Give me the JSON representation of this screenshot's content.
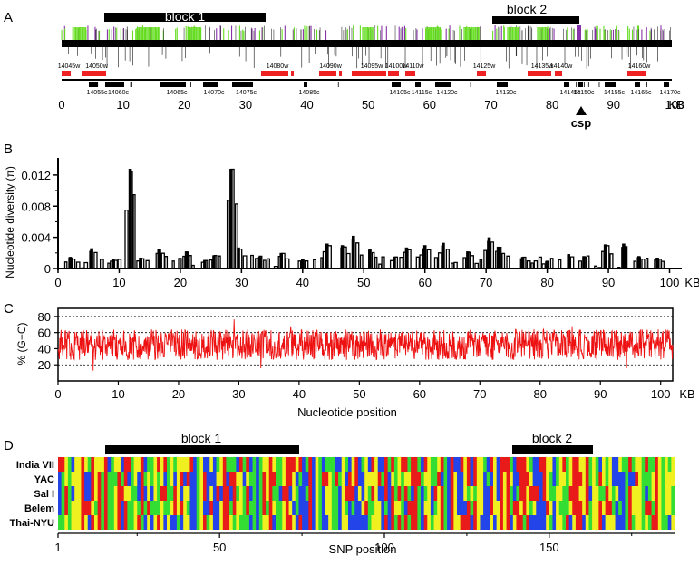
{
  "panel_a": {
    "letter": "A",
    "block_labels": [
      "block 1",
      "block 2"
    ],
    "upper_genes": [
      "14045w",
      "14050w",
      "14080w",
      "14090w",
      "14095w",
      "14100w",
      "14110w",
      "14125w",
      "14135w",
      "14140w",
      "14160w"
    ],
    "lower_genes": [
      "14055c",
      "14060c",
      "14065c",
      "14070c",
      "14075c",
      "14085c",
      "14105c",
      "14115c",
      "14120c",
      "14130c",
      "14145c",
      "14150c",
      "14155c",
      "14165c",
      "14170c"
    ],
    "axis_ticks": [
      "0",
      "10",
      "20",
      "30",
      "40",
      "50",
      "60",
      "70",
      "80",
      "90",
      "100"
    ],
    "axis_unit": "KB",
    "csp_label": "csp",
    "colors": {
      "green": "#66dd22",
      "purple": "#8833aa",
      "gene": "#ee2222"
    }
  },
  "chart_data": [
    {
      "panel": "B",
      "type": "line",
      "ylabel": "Nucleotide diversity (π)",
      "y_ticks": [
        "0",
        "0.004",
        "0.008",
        "0.012"
      ],
      "x_ticks": [
        "0",
        "10",
        "20",
        "30",
        "40",
        "50",
        "60",
        "70",
        "80",
        "90",
        "100"
      ],
      "x_unit": "KB",
      "ylim": [
        0,
        0.0135
      ],
      "xlim": [
        0,
        102
      ],
      "peaks": [
        {
          "x": 2,
          "y": 0.0015
        },
        {
          "x": 5.5,
          "y": 0.0026
        },
        {
          "x": 9,
          "y": 0.0012
        },
        {
          "x": 11.8,
          "y": 0.0128
        },
        {
          "x": 13.5,
          "y": 0.0014
        },
        {
          "x": 16.5,
          "y": 0.0025
        },
        {
          "x": 21,
          "y": 0.0022
        },
        {
          "x": 24,
          "y": 0.0011
        },
        {
          "x": 25.5,
          "y": 0.0017
        },
        {
          "x": 28.3,
          "y": 0.0128
        },
        {
          "x": 29.5,
          "y": 0.0027
        },
        {
          "x": 33,
          "y": 0.0015
        },
        {
          "x": 36.5,
          "y": 0.002
        },
        {
          "x": 40,
          "y": 0.0012
        },
        {
          "x": 44,
          "y": 0.0032
        },
        {
          "x": 46.5,
          "y": 0.003
        },
        {
          "x": 48.3,
          "y": 0.0042
        },
        {
          "x": 51,
          "y": 0.0025
        },
        {
          "x": 55,
          "y": 0.0015
        },
        {
          "x": 57,
          "y": 0.0027
        },
        {
          "x": 60,
          "y": 0.003
        },
        {
          "x": 63,
          "y": 0.0033
        },
        {
          "x": 67,
          "y": 0.0022
        },
        {
          "x": 70.5,
          "y": 0.004
        },
        {
          "x": 72,
          "y": 0.0028
        },
        {
          "x": 76,
          "y": 0.0015
        },
        {
          "x": 80,
          "y": 0.001
        },
        {
          "x": 83.5,
          "y": 0.0018
        },
        {
          "x": 86,
          "y": 0.0016
        },
        {
          "x": 89.5,
          "y": 0.0031
        },
        {
          "x": 92.5,
          "y": 0.0032
        },
        {
          "x": 95,
          "y": 0.0016
        },
        {
          "x": 98,
          "y": 0.0014
        }
      ],
      "series_color": "#000000"
    },
    {
      "panel": "C",
      "type": "line",
      "ylabel": "% (G+C)",
      "xlabel": "Nucleotide position",
      "y_ticks": [
        "20",
        "40",
        "60",
        "80"
      ],
      "x_ticks": [
        "0",
        "10",
        "20",
        "30",
        "40",
        "50",
        "60",
        "70",
        "80",
        "90",
        "100"
      ],
      "x_unit": "KB",
      "ylim": [
        0,
        90
      ],
      "xlim": [
        0,
        102
      ],
      "mean": 45,
      "dotted_lines": [
        20,
        60,
        80
      ],
      "series_color": "#ee1111"
    },
    {
      "panel": "D",
      "type": "heatmap",
      "rows": [
        "India VII",
        "YAC",
        "Sal I",
        "Belem",
        "Thai-NYU"
      ],
      "xlabel": "SNP position",
      "x_ticks": [
        "1",
        "50",
        "100",
        "150"
      ],
      "xlim": [
        1,
        187
      ],
      "block_labels": [
        "block 1",
        "block 2"
      ],
      "colors": [
        "#e81a1a",
        "#2244e8",
        "#f0f020",
        "#33dd33"
      ]
    }
  ],
  "panel_b": {
    "letter": "B"
  },
  "panel_c": {
    "letter": "C"
  },
  "panel_d": {
    "letter": "D"
  }
}
